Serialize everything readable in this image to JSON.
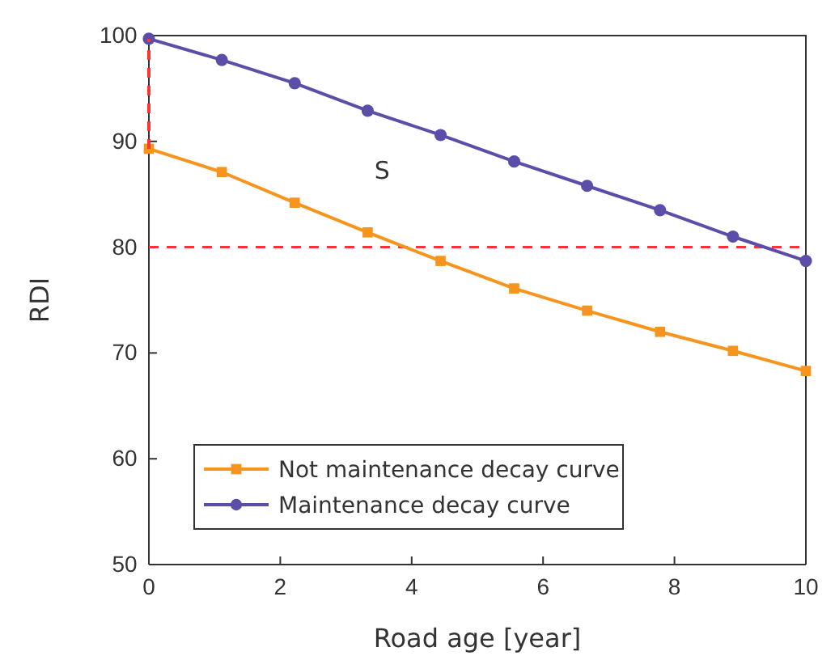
{
  "chart_data": {
    "type": "line",
    "xlabel": "Road age [year]",
    "ylabel": "RDI",
    "x": [
      0,
      1.11,
      2.22,
      3.33,
      4.44,
      5.56,
      6.67,
      7.78,
      8.89,
      10
    ],
    "series": [
      {
        "name": "Not maintenance decay curve",
        "color": "#f7941d",
        "marker": "square",
        "values": [
          89.3,
          87.1,
          84.2,
          81.4,
          78.7,
          76.1,
          74.0,
          72.0,
          70.2,
          68.3
        ]
      },
      {
        "name": "Maintenance decay curve",
        "color": "#5b4ea8",
        "marker": "circle",
        "values": [
          99.7,
          97.7,
          95.5,
          92.9,
          90.6,
          88.1,
          85.8,
          83.5,
          81.0,
          78.7
        ]
      },
      {
        "color": "#ff3333",
        "x": [
          0,
          0
        ],
        "values": [
          89.3,
          99.7
        ],
        "line_style": "dashed",
        "marker": "none"
      }
    ],
    "ref_lines": [
      {
        "axis": "y",
        "value": 80,
        "color": "#ff3333",
        "line_style": "dashed"
      }
    ],
    "annotations": [
      "S"
    ],
    "xlim": [
      0,
      10
    ],
    "ylim": [
      50,
      100
    ],
    "xticks": [
      0,
      2,
      4,
      6,
      8,
      10
    ],
    "yticks": [
      50,
      60,
      70,
      80,
      90,
      100
    ],
    "legend": "bottom left",
    "grid": false
  }
}
